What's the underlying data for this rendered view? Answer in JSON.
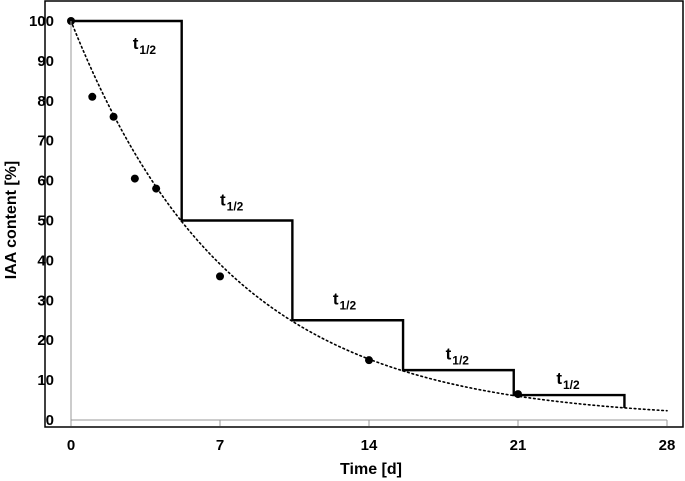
{
  "chart_data": {
    "type": "scatter",
    "title": "",
    "xlabel": "Time [d]",
    "ylabel": "IAA content [%]",
    "xlim": [
      0,
      28
    ],
    "ylim": [
      0,
      100
    ],
    "x_ticks": [
      "0",
      "7",
      "14",
      "21",
      "28"
    ],
    "y_ticks": [
      "0",
      "10",
      "20",
      "30",
      "40",
      "50",
      "60",
      "70",
      "80",
      "90",
      "100"
    ],
    "grid": false,
    "legend": "none",
    "series": [
      {
        "kind": "points",
        "marker": "filled-circle",
        "x": [
          0,
          1,
          2,
          3,
          4,
          7,
          14,
          21
        ],
        "y": [
          100,
          81,
          76,
          60.5,
          58,
          36,
          15,
          6.5
        ]
      },
      {
        "kind": "exponential-trendline",
        "style": "dotted",
        "a": 100,
        "k": 0.1343
      },
      {
        "kind": "half-life-steps",
        "style": "solid",
        "half_life": 5.2,
        "levels": [
          100,
          50,
          25,
          12.5,
          6.25
        ]
      }
    ],
    "annotations": [
      {
        "base": "t",
        "sub": "1/2",
        "x": 2.9,
        "y": 93
      },
      {
        "base": "t",
        "sub": "1/2",
        "x": 7.0,
        "y": 53.8
      },
      {
        "base": "t",
        "sub": "1/2",
        "x": 12.3,
        "y": 29.0
      },
      {
        "base": "t",
        "sub": "1/2",
        "x": 17.6,
        "y": 15.2
      },
      {
        "base": "t",
        "sub": "1/2",
        "x": 22.8,
        "y": 9.0
      }
    ]
  }
}
